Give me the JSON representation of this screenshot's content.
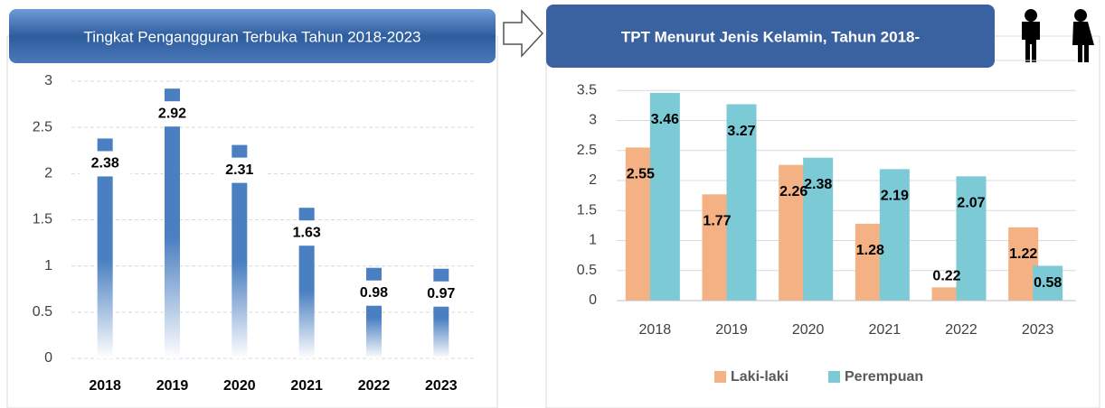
{
  "chart_data": [
    {
      "type": "bar",
      "title": "Tingkat Pengangguran Terbuka Tahun 2018-2023",
      "categories": [
        "2018",
        "2019",
        "2020",
        "2021",
        "2022",
        "2023"
      ],
      "values": [
        2.38,
        2.92,
        2.31,
        1.63,
        0.98,
        0.97
      ],
      "color": "#4a7fc1",
      "ylim": [
        0,
        3
      ],
      "yticks": [
        0,
        0.5,
        1,
        1.5,
        2,
        2.5,
        3
      ],
      "grid": true
    },
    {
      "type": "bar",
      "title": "TPT Menurut Jenis Kelamin, Tahun 2018-",
      "categories": [
        "2018",
        "2019",
        "2020",
        "2021",
        "2022",
        "2023"
      ],
      "series": [
        {
          "name": "Laki-laki",
          "color": "#f4b183",
          "values": [
            2.55,
            1.77,
            2.26,
            1.28,
            0.22,
            1.22
          ]
        },
        {
          "name": "Perempuan",
          "color": "#7ccad5",
          "values": [
            3.46,
            3.27,
            2.38,
            2.19,
            2.07,
            0.58
          ]
        }
      ],
      "ylim": [
        0,
        4
      ],
      "yticks": [
        0,
        0.5,
        1,
        1.5,
        2,
        2.5,
        3,
        3.5,
        4
      ],
      "grid": true,
      "legend": "bottom"
    }
  ]
}
